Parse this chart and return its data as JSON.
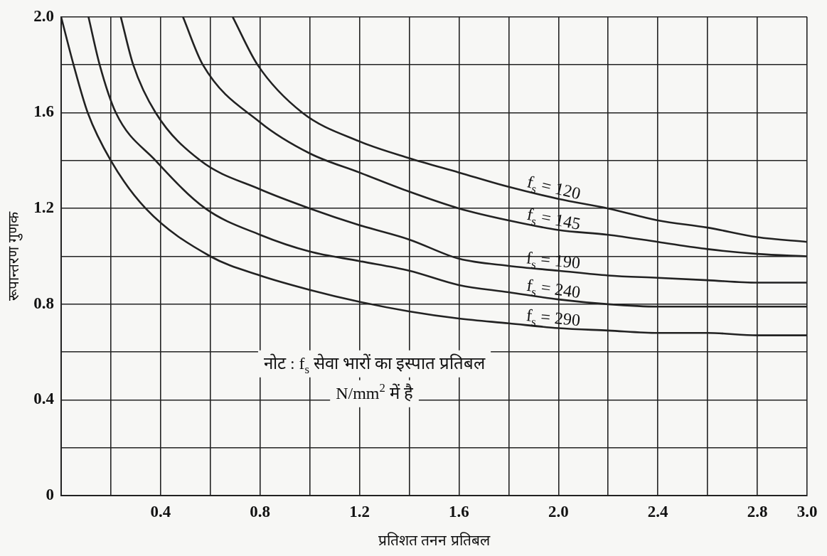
{
  "chart_data": {
    "type": "line",
    "xlabel": "प्रतिशत तनन प्रतिबल",
    "ylabel": "रूपान्तरण गुणक",
    "xlim": [
      0,
      3.0
    ],
    "ylim": [
      0,
      2.0
    ],
    "xticks": [
      {
        "value": 0,
        "label": null
      },
      {
        "value": 0.2,
        "label": null
      },
      0.4,
      {
        "value": 0.6,
        "label": null
      },
      0.8,
      {
        "value": 1.0,
        "label": null
      },
      1.2,
      {
        "value": 1.4,
        "label": null
      },
      1.6,
      {
        "value": 1.8,
        "label": null
      },
      {
        "value": 2.0,
        "label": "2.0"
      },
      {
        "value": 2.2,
        "label": null
      },
      2.4,
      {
        "value": 2.6,
        "label": null
      },
      2.8,
      {
        "value": 3.0,
        "label": "3.0"
      }
    ],
    "yticks": [
      0,
      {
        "value": 0.2,
        "label": null
      },
      0.4,
      {
        "value": 0.6,
        "label": null
      },
      0.8,
      {
        "value": 1.0,
        "label": null
      },
      1.2,
      {
        "value": 1.4,
        "label": null
      },
      1.6,
      {
        "value": 1.8,
        "label": null
      },
      {
        "value": 2.0,
        "label": "2.0"
      }
    ],
    "grid": true,
    "legend": false,
    "marker": "none",
    "line_style": "solid",
    "series": [
      {
        "name": "f$_{s}$ = 120",
        "color": "#222222",
        "x": [
          0.69,
          0.79,
          0.97,
          1.2,
          1.4,
          1.6,
          1.8,
          2.0,
          2.2,
          2.4,
          2.6,
          2.8,
          3.0
        ],
        "values": [
          2.0,
          1.8,
          1.6,
          1.48,
          1.41,
          1.35,
          1.29,
          1.24,
          1.2,
          1.15,
          1.12,
          1.08,
          1.06
        ]
      },
      {
        "name": "f$_{s}$ = 145",
        "color": "#222222",
        "x": [
          0.49,
          0.57,
          0.8,
          1.0,
          1.2,
          1.4,
          1.6,
          1.8,
          2.0,
          2.2,
          2.4,
          2.6,
          2.8,
          3.0
        ],
        "values": [
          2.0,
          1.8,
          1.56,
          1.43,
          1.35,
          1.27,
          1.2,
          1.15,
          1.11,
          1.09,
          1.06,
          1.03,
          1.01,
          1.0
        ]
      },
      {
        "name": "f$_{s}$ = 190",
        "color": "#222222",
        "x": [
          0.24,
          0.29,
          0.38,
          0.56,
          0.8,
          1.0,
          1.2,
          1.4,
          1.6,
          1.8,
          2.0,
          2.2,
          2.4,
          2.6,
          2.8,
          3.0
        ],
        "values": [
          2.0,
          1.8,
          1.6,
          1.4,
          1.28,
          1.2,
          1.13,
          1.07,
          0.99,
          0.96,
          0.94,
          0.92,
          0.91,
          0.9,
          0.89,
          0.89
        ]
      },
      {
        "name": "f$_{s}$ = 240",
        "color": "#222222",
        "x": [
          0.11,
          0.155,
          0.22,
          0.38,
          0.58,
          0.8,
          1.0,
          1.2,
          1.4,
          1.6,
          1.8,
          2.0,
          2.2,
          2.4,
          2.6,
          2.8,
          3.0
        ],
        "values": [
          2.0,
          1.8,
          1.6,
          1.4,
          1.2,
          1.09,
          1.02,
          0.98,
          0.94,
          0.88,
          0.85,
          0.82,
          0.8,
          0.79,
          0.79,
          0.79,
          0.79
        ]
      },
      {
        "name": "f$_{s}$ = 290",
        "color": "#222222",
        "x": [
          0.0,
          0.05,
          0.107,
          0.2,
          0.34,
          0.6,
          0.8,
          1.0,
          1.2,
          1.4,
          1.6,
          1.8,
          2.0,
          2.2,
          2.4,
          2.6,
          2.8,
          3.0
        ],
        "values": [
          2.0,
          1.8,
          1.6,
          1.4,
          1.2,
          1.0,
          0.92,
          0.86,
          0.81,
          0.77,
          0.74,
          0.72,
          0.7,
          0.69,
          0.68,
          0.68,
          0.67,
          0.67
        ]
      }
    ],
    "annotations": [
      "नोट : f$_{s}$ सेवा भारों का इस्पात प्रतिबल",
      "N/mm$^{2}$ में है"
    ]
  }
}
